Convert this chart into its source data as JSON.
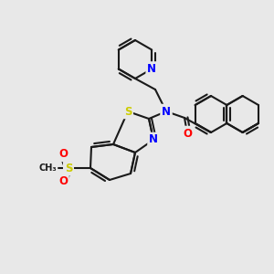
{
  "bg_color": "#e8e8e8",
  "bond_color": "#1a1a1a",
  "bond_width": 1.5,
  "atom_colors": {
    "N": "#0000ff",
    "S": "#cccc00",
    "O": "#ff0000",
    "C": "#1a1a1a"
  },
  "font_size_atom": 8.5,
  "figsize": [
    3.0,
    3.0
  ],
  "dpi": 100
}
